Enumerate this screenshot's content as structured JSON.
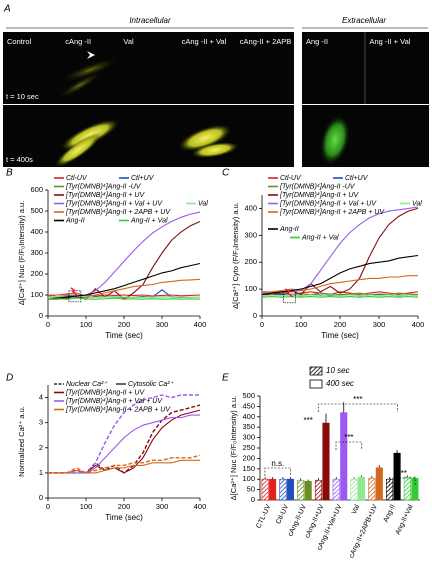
{
  "panel_a": {
    "label": "A",
    "intracellular": "Intracellular",
    "extracellular": "Extracellular",
    "intracellular_columns": [
      "Control",
      "cAng -II",
      "Val",
      "cAng -II + Val",
      "cAng-II + 2APB"
    ],
    "extracellular_columns": [
      "Ang -II",
      "Ang -II + Val"
    ],
    "time_labels": [
      "t = 10 sec",
      "t = 400s"
    ]
  },
  "chart_data": [
    {
      "type": "line",
      "panel_label": "B",
      "xlabel": "Time (sec)",
      "ylabel": "Δ[Ca²⁺] Nuc (F/F₀Intensity) a.u.",
      "x": [
        0,
        25,
        50,
        75,
        100,
        125,
        150,
        175,
        200,
        225,
        250,
        275,
        300,
        325,
        350,
        375,
        400
      ],
      "xlim": [
        0,
        400
      ],
      "xticks": [
        0,
        100,
        200,
        300,
        400
      ],
      "ylim": [
        0,
        600
      ],
      "yticks": [
        0,
        100,
        200,
        300,
        400,
        500,
        600
      ],
      "series": [
        {
          "name": "Ctl-UV",
          "color": "#e0201c",
          "values": [
            95,
            100,
            105,
            90,
            100,
            95,
            100,
            98,
            100,
            97,
            100,
            95,
            98,
            100,
            96,
            98,
            100
          ]
        },
        {
          "name": "Ctl+UV",
          "color": "#1f4fbf",
          "values": [
            90,
            88,
            92,
            90,
            88,
            90,
            92,
            90,
            88,
            90,
            92,
            90,
            125,
            90,
            88,
            90,
            90
          ]
        },
        {
          "name": "[Tyr(DMNB)⁴]Ang-II -UV",
          "color": "#6b8e23",
          "values": [
            90,
            92,
            95,
            100,
            90,
            88,
            90,
            92,
            90,
            90,
            88,
            90,
            90,
            92,
            90,
            90,
            90
          ]
        },
        {
          "name": "[Tyr(DMNB)⁴]Ang-II + UV",
          "color": "#8b0a0a",
          "values": [
            80,
            80,
            85,
            95,
            80,
            130,
            90,
            120,
            80,
            110,
            150,
            230,
            300,
            360,
            400,
            430,
            450
          ]
        },
        {
          "name": "[Tyr(DMNB)⁴]Ang-II + Val + UV",
          "color": "#9b59f0",
          "values": [
            100,
            100,
            100,
            100,
            100,
            120,
            160,
            210,
            260,
            310,
            355,
            395,
            425,
            450,
            470,
            485,
            495
          ]
        },
        {
          "name": "[Tyr(DMNB)⁴]Ang-II + 2APB + UV",
          "color": "#d2691e",
          "values": [
            100,
            100,
            105,
            110,
            95,
            100,
            110,
            120,
            130,
            140,
            145,
            150,
            160,
            165,
            170,
            172,
            175
          ]
        },
        {
          "name": "Val",
          "color": "#8fe88f",
          "values": [
            90,
            92,
            90,
            95,
            90,
            88,
            90,
            92,
            90,
            90,
            88,
            90,
            92,
            90,
            90,
            90,
            90
          ]
        },
        {
          "name": "Ang-II",
          "color": "#000000",
          "values": [
            80,
            85,
            90,
            95,
            100,
            110,
            120,
            130,
            145,
            160,
            175,
            190,
            205,
            215,
            230,
            240,
            250
          ]
        },
        {
          "name": "Ang-II + Val",
          "color": "#33cc33",
          "values": [
            80,
            82,
            80,
            85,
            82,
            80,
            82,
            85,
            80,
            82,
            80,
            82,
            80,
            82,
            80,
            82,
            80
          ]
        }
      ]
    },
    {
      "type": "line",
      "panel_label": "C",
      "xlabel": "Time (sec)",
      "ylabel": "Δ[Ca²⁺] Cyto (F/F₀Intensity) a.u.",
      "x": [
        0,
        25,
        50,
        75,
        100,
        125,
        150,
        175,
        200,
        225,
        250,
        275,
        300,
        325,
        350,
        375,
        400
      ],
      "xlim": [
        0,
        400
      ],
      "xticks": [
        0,
        100,
        200,
        300,
        400
      ],
      "ylim": [
        0,
        450
      ],
      "yticks": [
        0,
        100,
        200,
        300,
        400
      ],
      "series": [
        {
          "name": "Ctl-UV",
          "color": "#e0201c",
          "values": [
            80,
            85,
            90,
            80,
            85,
            90,
            85,
            80,
            90,
            85,
            80,
            85,
            90,
            85,
            80,
            85,
            90
          ]
        },
        {
          "name": "Ctl+UV",
          "color": "#1f4fbf",
          "values": [
            75,
            78,
            80,
            78,
            75,
            80,
            78,
            75,
            78,
            80,
            75,
            78,
            80,
            78,
            75,
            78,
            80
          ]
        },
        {
          "name": "[Tyr(DMNB)⁴]Ang-II -UV",
          "color": "#6b8e23",
          "values": [
            80,
            82,
            85,
            80,
            82,
            80,
            85,
            82,
            80,
            82,
            85,
            80,
            82,
            80,
            85,
            82,
            80
          ]
        },
        {
          "name": "[Tyr(DMNB)⁴]Ang-II + UV",
          "color": "#8b0a0a",
          "values": [
            80,
            80,
            85,
            95,
            80,
            120,
            90,
            110,
            85,
            100,
            140,
            220,
            290,
            340,
            370,
            390,
            400
          ]
        },
        {
          "name": "[Tyr(DMNB)⁴]Ang-II + Val + UV",
          "color": "#9b59f0",
          "values": [
            85,
            85,
            88,
            90,
            95,
            120,
            170,
            220,
            270,
            310,
            340,
            365,
            380,
            390,
            395,
            400,
            405
          ]
        },
        {
          "name": "[Tyr(DMNB)⁴]Ang-II + 2APB + UV",
          "color": "#d2691e",
          "values": [
            90,
            90,
            95,
            100,
            95,
            100,
            110,
            120,
            125,
            130,
            135,
            140,
            140,
            145,
            145,
            150,
            150
          ]
        },
        {
          "name": "Val",
          "color": "#8fe88f",
          "values": [
            75,
            78,
            75,
            78,
            75,
            78,
            75,
            78,
            75,
            78,
            75,
            78,
            75,
            78,
            75,
            78,
            75
          ]
        },
        {
          "name": "Ang-II",
          "color": "#000000",
          "values": [
            80,
            85,
            90,
            95,
            100,
            110,
            120,
            140,
            160,
            175,
            185,
            195,
            200,
            205,
            215,
            220,
            225
          ]
        },
        {
          "name": "Ang-II + Val",
          "color": "#33cc33",
          "values": [
            70,
            72,
            70,
            72,
            70,
            72,
            70,
            72,
            70,
            72,
            70,
            72,
            70,
            72,
            70,
            72,
            70
          ]
        }
      ]
    },
    {
      "type": "line",
      "panel_label": "D",
      "xlabel": "Time (sec)",
      "ylabel": "Normalized Ca²⁺ a.u.",
      "x": [
        0,
        25,
        50,
        75,
        100,
        125,
        150,
        175,
        200,
        225,
        250,
        275,
        300,
        325,
        350,
        375,
        400
      ],
      "xlim": [
        0,
        400
      ],
      "xticks": [
        0,
        100,
        200,
        300,
        400
      ],
      "ylim": [
        0,
        4.5
      ],
      "yticks": [
        0,
        1,
        2,
        3,
        4
      ],
      "line_styles": [
        {
          "label": "Nuclear Ca²⁺",
          "dash": true
        },
        {
          "label": "Cytosolic Ca²⁺",
          "dash": false
        }
      ],
      "series": [
        {
          "name": "[Tyr(DMNB)⁴]Ang-II + UV",
          "color": "#8b0a0a",
          "values": [
            1,
            1,
            1,
            1.1,
            1,
            1.3,
            1.1,
            1.2,
            1,
            1.2,
            1.6,
            2.3,
            2.8,
            3.1,
            3.3,
            3.4,
            3.5
          ],
          "nuclear_values": [
            1,
            1,
            1,
            1.1,
            1,
            1.4,
            1.1,
            1.3,
            1,
            1.3,
            1.8,
            2.6,
            3.1,
            3.4,
            3.5,
            3.6,
            3.7
          ]
        },
        {
          "name": "[Tyr(DMNB)⁴]Ang-II + Val + UV",
          "color": "#9b59f0",
          "values": [
            1,
            1,
            1,
            1,
            1,
            1.2,
            1.6,
            2.0,
            2.4,
            2.7,
            2.9,
            3.0,
            3.1,
            3.2,
            3.2,
            3.3,
            3.3
          ],
          "nuclear_values": [
            1,
            1,
            1,
            1,
            1,
            1.4,
            2.2,
            2.9,
            3.4,
            3.7,
            3.9,
            4.0,
            4.1,
            4.0,
            4.1,
            4.1,
            4.1
          ]
        },
        {
          "name": "[Tyr(DMNB)⁴]Ang-II + 2APB + UV",
          "color": "#d2691e",
          "values": [
            1,
            1,
            1,
            1.1,
            1,
            1,
            1.1,
            1.2,
            1.2,
            1.3,
            1.3,
            1.4,
            1.4,
            1.4,
            1.5,
            1.5,
            1.5
          ],
          "nuclear_values": [
            1,
            1,
            1,
            1.2,
            1,
            1.1,
            1.2,
            1.3,
            1.3,
            1.4,
            1.4,
            1.5,
            1.5,
            1.6,
            1.6,
            1.6,
            1.7
          ]
        }
      ]
    },
    {
      "type": "bar",
      "panel_label": "E",
      "ylabel": "Δ[Ca²⁺] Nuc (F/F₀Intensity) a.u.",
      "categories": [
        "CTL-UV",
        "Ctl-UV",
        "cAng-II-UV",
        "cAng-II+UV",
        "cAng-II+Val+UV",
        "Val",
        "cAng-II+2APB+UV",
        "Ang-II",
        "Ang-II+Val"
      ],
      "category_colors": [
        "#e0201c",
        "#1f4fbf",
        "#6b8e23",
        "#8b0a0a",
        "#9b59f0",
        "#8fe88f",
        "#d2691e",
        "#000000",
        "#33cc33"
      ],
      "ylim": [
        0,
        500
      ],
      "yticks": [
        0,
        50,
        100,
        150,
        200,
        250,
        300,
        350,
        400,
        450,
        500
      ],
      "series": [
        {
          "name": "10 sec",
          "hatched": true,
          "values": [
            100,
            100,
            95,
            95,
            100,
            100,
            105,
            100,
            110
          ],
          "errors": [
            10,
            10,
            8,
            10,
            10,
            8,
            10,
            10,
            8
          ]
        },
        {
          "name": "400 sec",
          "hatched": false,
          "values": [
            100,
            100,
            90,
            370,
            420,
            110,
            155,
            225,
            105
          ],
          "errors": [
            10,
            10,
            8,
            45,
            50,
            8,
            12,
            15,
            8
          ]
        }
      ],
      "annotations": [
        "n.s.",
        "***",
        "***",
        "***",
        "***"
      ]
    }
  ]
}
